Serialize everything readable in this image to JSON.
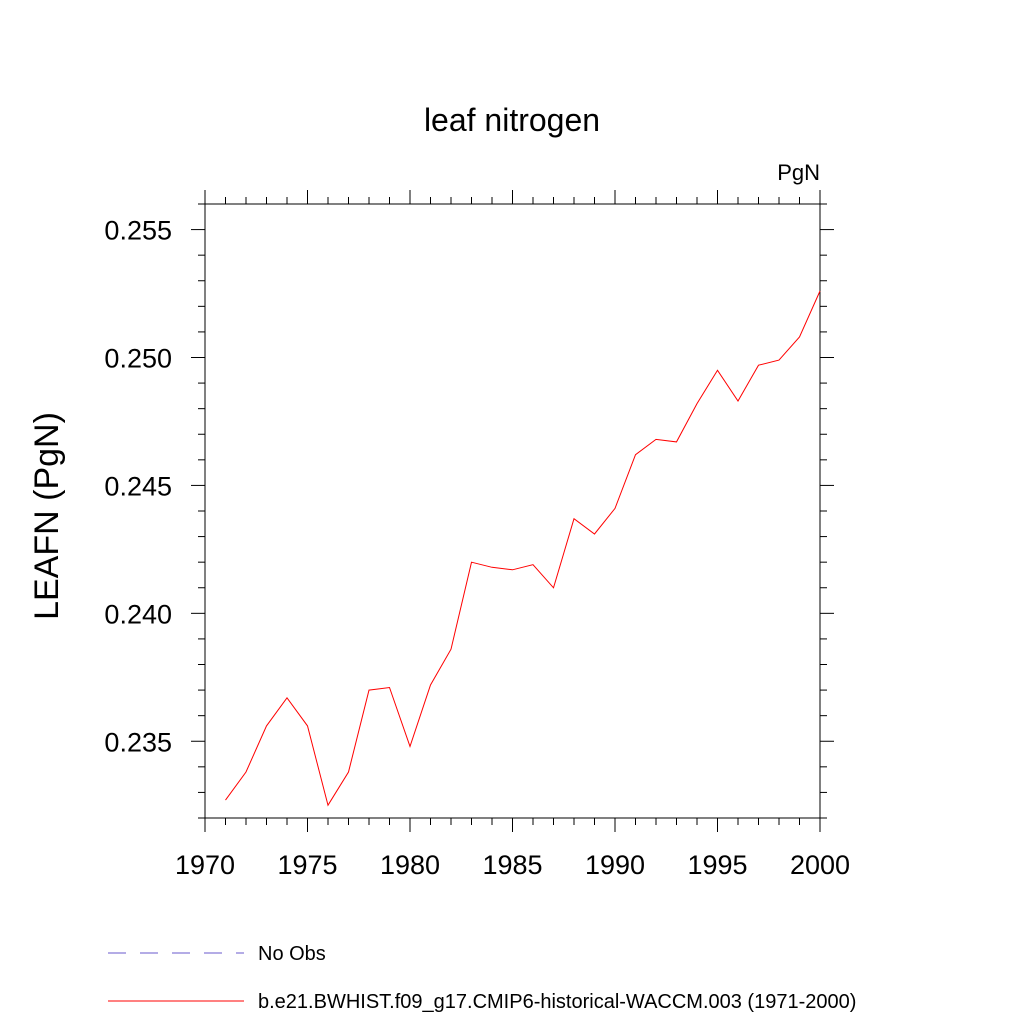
{
  "chart_data": {
    "type": "line",
    "title": "leaf nitrogen",
    "units_label": "PgN",
    "xlabel": "",
    "ylabel": "LEAFN  (PgN)",
    "xlim": [
      1970,
      2000
    ],
    "ylim": [
      0.232,
      0.256
    ],
    "xticks": [
      1970,
      1975,
      1980,
      1985,
      1990,
      1995,
      2000
    ],
    "xtick_labels": [
      "1970",
      "1975",
      "1980",
      "1985",
      "1990",
      "1995",
      "2000"
    ],
    "yticks": [
      0.235,
      0.24,
      0.245,
      0.25,
      0.255
    ],
    "ytick_labels": [
      "0.235",
      "0.240",
      "0.245",
      "0.250",
      "0.255"
    ],
    "grid": false,
    "legend_placement": "bottom-left, below plot",
    "series": [
      {
        "name": "b.e21.BWHIST.f09_g17.CMIP6-historical-WACCM.003 (1971-2000)",
        "color": "#ff0000",
        "style": "solid",
        "x": [
          1971,
          1972,
          1973,
          1974,
          1975,
          1976,
          1977,
          1978,
          1979,
          1980,
          1981,
          1982,
          1983,
          1984,
          1985,
          1986,
          1987,
          1988,
          1989,
          1990,
          1991,
          1992,
          1993,
          1994,
          1995,
          1996,
          1997,
          1998,
          1999,
          2000
        ],
        "y": [
          0.2327,
          0.2338,
          0.2356,
          0.2367,
          0.2356,
          0.2325,
          0.2338,
          0.237,
          0.2371,
          0.2348,
          0.2372,
          0.2386,
          0.242,
          0.2418,
          0.2417,
          0.2419,
          0.241,
          0.2437,
          0.2431,
          0.2441,
          0.2462,
          0.2468,
          0.2467,
          0.2482,
          0.2495,
          0.2483,
          0.2497,
          0.2499,
          0.2508,
          0.2526
        ]
      },
      {
        "name": "No Obs",
        "color": "#6a5acd",
        "style": "dashed",
        "x": [],
        "y": []
      }
    ]
  }
}
